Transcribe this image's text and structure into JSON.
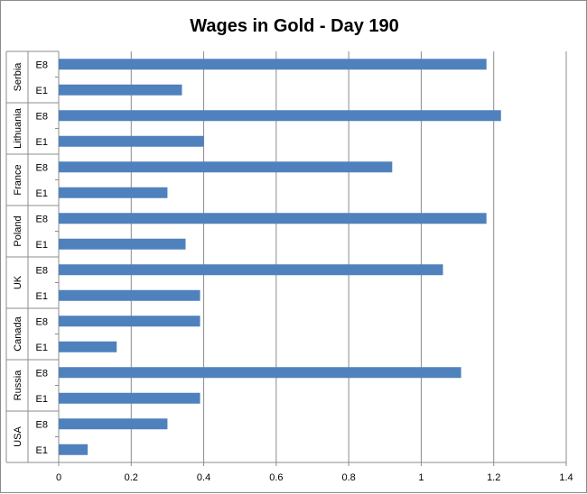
{
  "chart_data": {
    "type": "bar",
    "orientation": "horizontal",
    "title": "Wages in Gold - Day 190",
    "xlabel": "",
    "ylabel": "",
    "xlim": [
      0,
      1.4
    ],
    "x_ticks": [
      "0",
      "0.2",
      "0.4",
      "0.6",
      "0.8",
      "1",
      "1.2",
      "1.4"
    ],
    "grid": true,
    "legend": "none",
    "bar_color": "#4F81BD",
    "groups": [
      {
        "country": "Serbia",
        "bars": [
          {
            "label": "E8",
            "value": 1.18
          },
          {
            "label": "E1",
            "value": 0.34
          }
        ]
      },
      {
        "country": "Lithuania",
        "bars": [
          {
            "label": "E8",
            "value": 1.22
          },
          {
            "label": "E1",
            "value": 0.4
          }
        ]
      },
      {
        "country": "France",
        "bars": [
          {
            "label": "E8",
            "value": 0.92
          },
          {
            "label": "E1",
            "value": 0.3
          }
        ]
      },
      {
        "country": "Poland",
        "bars": [
          {
            "label": "E8",
            "value": 1.18
          },
          {
            "label": "E1",
            "value": 0.35
          }
        ]
      },
      {
        "country": "UK",
        "bars": [
          {
            "label": "E8",
            "value": 1.06
          },
          {
            "label": "E1",
            "value": 0.39
          }
        ]
      },
      {
        "country": "Canada",
        "bars": [
          {
            "label": "E8",
            "value": 0.39
          },
          {
            "label": "E1",
            "value": 0.16
          }
        ]
      },
      {
        "country": "Russia",
        "bars": [
          {
            "label": "E8",
            "value": 1.11
          },
          {
            "label": "E1",
            "value": 0.39
          }
        ]
      },
      {
        "country": "USA",
        "bars": [
          {
            "label": "E8",
            "value": 0.3
          },
          {
            "label": "E1",
            "value": 0.08
          }
        ]
      }
    ]
  }
}
